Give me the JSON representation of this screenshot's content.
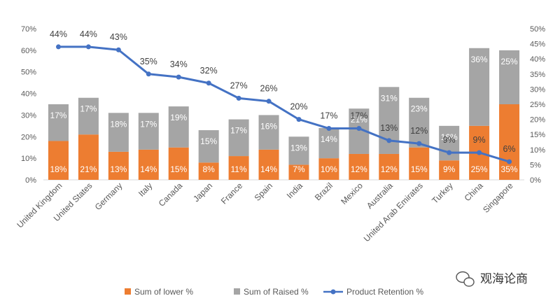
{
  "chart_data": {
    "type": "bar",
    "stacked": true,
    "categories": [
      "United Kingdom",
      "United States",
      "Germany",
      "Italy",
      "Canada",
      "Japan",
      "France",
      "Spain",
      "India",
      "Brazil",
      "Mexico",
      "Australia",
      "United Arab Emirates",
      "Turkey",
      "China",
      "Singapore"
    ],
    "series": [
      {
        "name": "Sum of lower %",
        "type": "bar",
        "axis": "left",
        "color": "#ED7D31",
        "values": [
          18,
          21,
          13,
          14,
          15,
          8,
          11,
          14,
          7,
          10,
          12,
          12,
          15,
          9,
          25,
          35
        ],
        "labels": [
          "18%",
          "21%",
          "13%",
          "14%",
          "15%",
          "8%",
          "11%",
          "14%",
          "7%",
          "10%",
          "12%",
          "12%",
          "15%",
          "9%",
          "25%",
          "35%"
        ]
      },
      {
        "name": "Sum of Raised %",
        "type": "bar",
        "axis": "left",
        "color": "#A5A5A5",
        "values": [
          17,
          17,
          18,
          17,
          19,
          15,
          17,
          16,
          13,
          14,
          21,
          31,
          23,
          16,
          36,
          25
        ],
        "labels": [
          "17%",
          "17%",
          "18%",
          "17%",
          "19%",
          "15%",
          "17%",
          "16%",
          "13%",
          "14%",
          "21%",
          "31%",
          "23%",
          "16%",
          "36%",
          "25%"
        ]
      },
      {
        "name": "Product Retention %",
        "type": "line",
        "axis": "right",
        "color": "#4472C4",
        "values": [
          44,
          44,
          43,
          35,
          34,
          32,
          27,
          26,
          20,
          17,
          17,
          13,
          12,
          9,
          9,
          6
        ],
        "labels": [
          "44%",
          "44%",
          "43%",
          "35%",
          "34%",
          "32%",
          "27%",
          "26%",
          "20%",
          "17%",
          "17%",
          "13%",
          "12%",
          "9%",
          "9%",
          "6%"
        ]
      }
    ],
    "left_axis": {
      "ylim": [
        0,
        70
      ],
      "ticks": [
        "0%",
        "10%",
        "20%",
        "30%",
        "40%",
        "50%",
        "60%",
        "70%"
      ]
    },
    "right_axis": {
      "ylim": [
        0,
        50
      ],
      "ticks": [
        "0%",
        "5%",
        "10%",
        "15%",
        "20%",
        "25%",
        "30%",
        "35%",
        "40%",
        "45%",
        "50%"
      ]
    },
    "grid": false,
    "legend": "bottom"
  },
  "watermark": {
    "text": "观海论商",
    "icon": "wechat-icon"
  }
}
